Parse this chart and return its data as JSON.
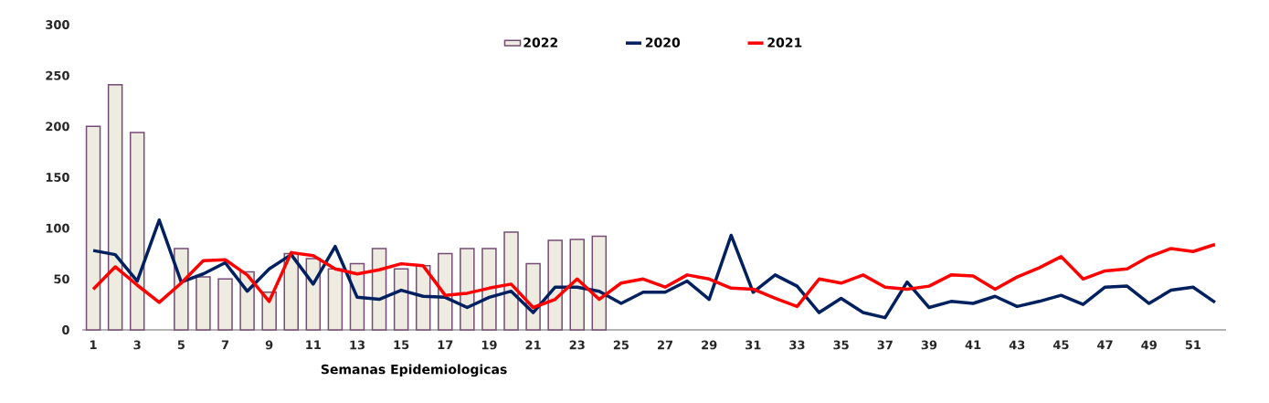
{
  "chart_data": {
    "type": "bar",
    "xlabel": "Semanas Epidemiologicas",
    "categories": [
      "1",
      null,
      "3",
      null,
      "5",
      null,
      "7",
      null,
      "9",
      null,
      "11",
      null,
      "13",
      null,
      "15",
      null,
      "17",
      null,
      "19",
      null,
      "21",
      null,
      "23",
      null,
      "25",
      null,
      "27",
      null,
      "29",
      null,
      "31",
      null,
      "33",
      null,
      "35",
      null,
      "37",
      null,
      "39",
      null,
      "41",
      null,
      "43",
      null,
      "45",
      null,
      "47",
      null,
      "49",
      null,
      "51",
      null
    ],
    "series": [
      {
        "name": "2022",
        "color": "#eeebe0",
        "values": [
          200,
          241,
          194,
          null,
          80,
          52,
          50,
          57,
          37,
          75,
          70,
          60,
          65,
          80,
          60,
          63,
          75,
          80,
          80,
          96,
          65,
          88,
          89,
          92,
          null,
          null,
          null,
          null,
          null,
          null,
          null,
          null,
          null,
          null,
          null,
          null,
          null,
          null,
          null,
          null,
          null,
          null,
          null,
          null,
          null,
          null,
          null,
          null,
          null,
          null,
          null,
          null
        ]
      },
      {
        "name": "2020",
        "type": "line",
        "color": "#002060",
        "values": [
          78,
          74,
          48,
          108,
          47,
          55,
          66,
          38,
          60,
          74,
          45,
          82,
          32,
          30,
          39,
          33,
          32,
          22,
          32,
          38,
          17,
          42,
          42,
          38,
          26,
          37,
          37,
          48,
          30,
          93,
          37,
          54,
          43,
          17,
          31,
          17,
          12,
          47,
          22,
          28,
          26,
          33,
          23,
          28,
          34,
          25,
          42,
          43,
          26,
          39,
          42,
          27
        ]
      },
      {
        "name": "2021",
        "type": "line",
        "color": "#ff0000",
        "values": [
          40,
          62,
          44,
          27,
          46,
          68,
          69,
          54,
          28,
          76,
          73,
          60,
          55,
          59,
          65,
          63,
          34,
          36,
          41,
          45,
          22,
          30,
          50,
          30,
          46,
          50,
          42,
          54,
          50,
          41,
          40,
          31,
          23,
          50,
          46,
          54,
          42,
          40,
          43,
          54,
          53,
          40,
          52,
          61,
          72,
          50,
          58,
          60,
          72,
          80,
          77,
          84
        ]
      }
    ],
    "ylim": [
      0,
      300
    ],
    "yticks": [
      0,
      50,
      100,
      150,
      200,
      250,
      300
    ],
    "grid": false,
    "legend": "top",
    "marker": "none"
  }
}
